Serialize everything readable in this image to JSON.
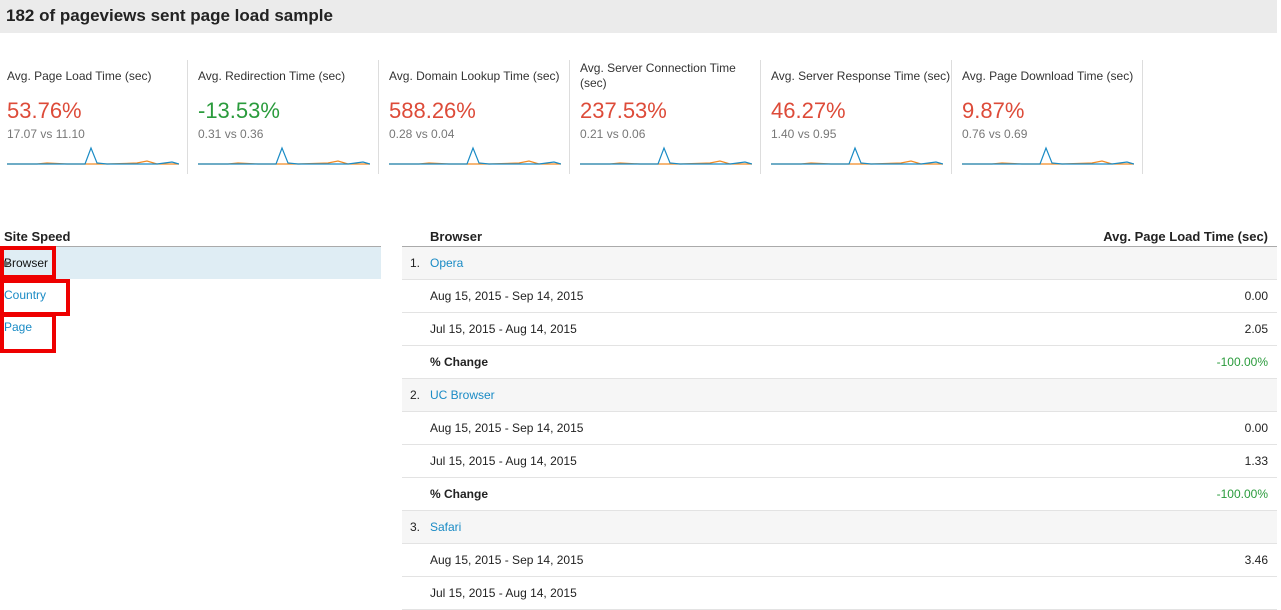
{
  "header": {
    "title": "182 of pageviews sent page load sample"
  },
  "metrics": [
    {
      "label": "Avg. Page Load Time (sec)",
      "change": "53.76%",
      "color": "#dd4b39",
      "comparison": "17.07 vs 11.10"
    },
    {
      "label": "Avg. Redirection Time (sec)",
      "change": "-13.53%",
      "color": "#2a9b3c",
      "comparison": "0.31 vs 0.36"
    },
    {
      "label": "Avg. Domain Lookup Time (sec)",
      "change": "588.26%",
      "color": "#dd4b39",
      "comparison": "0.28 vs 0.04"
    },
    {
      "label": "Avg. Server Connection Time (sec)",
      "change": "237.53%",
      "color": "#dd4b39",
      "comparison": "0.21 vs 0.06"
    },
    {
      "label": "Avg. Server Response Time (sec)",
      "change": "46.27%",
      "color": "#dd4b39",
      "comparison": "1.40 vs 0.95"
    },
    {
      "label": "Avg. Page Download Time (sec)",
      "change": "9.87%",
      "color": "#dd4b39",
      "comparison": "0.76 vs 0.69"
    }
  ],
  "sidebar": {
    "title": "Site Speed",
    "items": [
      "Browser",
      "Country",
      "Page"
    ]
  },
  "table": {
    "headers": [
      "Browser",
      "Avg. Page Load Time (sec)"
    ],
    "groups": [
      {
        "index": "1.",
        "name": "Opera",
        "rows": [
          [
            "Aug 15, 2015 - Sep 14, 2015",
            "0.00"
          ],
          [
            "Jul 15, 2015 - Aug 14, 2015",
            "2.05"
          ]
        ],
        "change": [
          "% Change",
          "-100.00%"
        ]
      },
      {
        "index": "2.",
        "name": "UC Browser",
        "rows": [
          [
            "Aug 15, 2015 - Sep 14, 2015",
            "0.00"
          ],
          [
            "Jul 15, 2015 - Aug 14, 2015",
            "1.33"
          ]
        ],
        "change": [
          "% Change",
          "-100.00%"
        ]
      },
      {
        "index": "3.",
        "name": "Safari",
        "rows": [
          [
            "Aug 15, 2015 - Sep 14, 2015",
            "3.46"
          ],
          [
            "Jul 15, 2015 - Aug 14, 2015"
          ]
        ]
      }
    ]
  }
}
